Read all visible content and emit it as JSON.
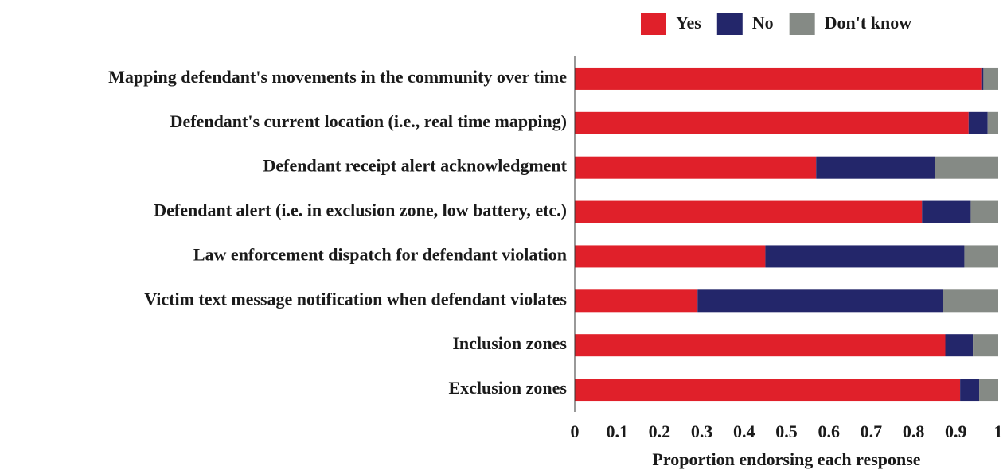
{
  "chart_data": {
    "type": "stacked_barh",
    "x_label": "Proportion endorsing each response",
    "categories": [
      "Mapping defendant's movements in the community over time",
      "Defendant's current location (i.e., real time mapping)",
      "Defendant receipt alert acknowledgment",
      "Defendant alert (i.e. in exclusion zone, low battery, etc.)",
      "Law enforcement dispatch for defendant violation",
      "Victim text message notification when defendant violates",
      "Inclusion zones",
      "Exclusion zones"
    ],
    "series": [
      {
        "name": "Yes",
        "color": "#e0202a",
        "values": [
          0.96,
          0.93,
          0.57,
          0.82,
          0.45,
          0.29,
          0.875,
          0.91
        ]
      },
      {
        "name": "No",
        "color": "#23266a",
        "values": [
          0.005,
          0.045,
          0.28,
          0.115,
          0.47,
          0.58,
          0.065,
          0.045
        ]
      },
      {
        "name": "Don't know",
        "color": "#858a85",
        "values": [
          0.035,
          0.025,
          0.15,
          0.065,
          0.08,
          0.13,
          0.06,
          0.045
        ]
      }
    ],
    "xlim": [
      0,
      1
    ],
    "xticks": [
      0,
      0.1,
      0.2,
      0.3,
      0.4,
      0.5,
      0.6,
      0.7,
      0.8,
      0.9,
      1
    ],
    "legend": "top"
  }
}
